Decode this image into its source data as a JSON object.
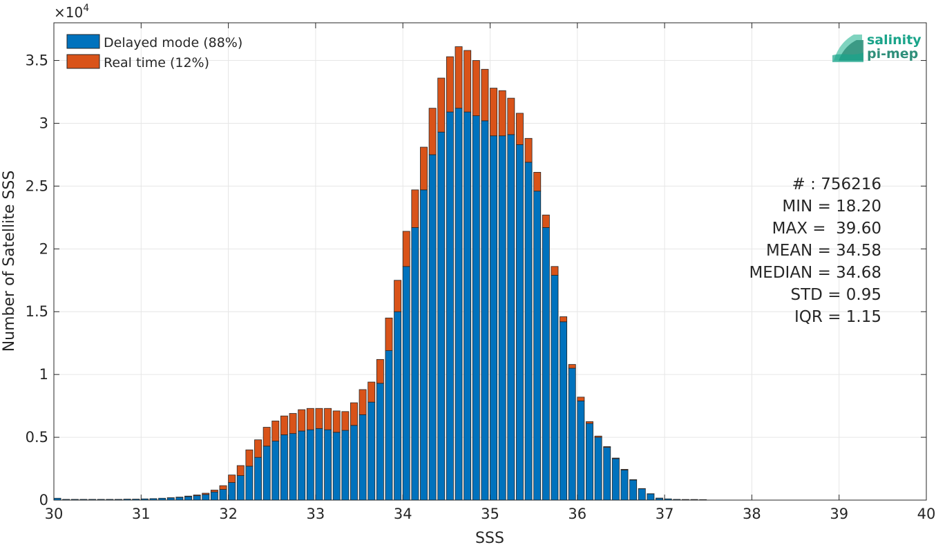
{
  "chart_data": {
    "type": "bar",
    "stacked": true,
    "xlabel": "SSS",
    "ylabel": "Number of Satellite SSS",
    "y_multiplier_label": "×10",
    "y_multiplier_exp": "4",
    "xlim": [
      30,
      40
    ],
    "ylim": [
      0,
      38000
    ],
    "xticks": [
      30,
      31,
      32,
      33,
      34,
      35,
      36,
      37,
      38,
      39,
      40
    ],
    "yticks": [
      0,
      5000,
      10000,
      15000,
      20000,
      25000,
      30000,
      35000
    ],
    "ytick_labels": [
      "0",
      "0.5",
      "1",
      "1.5",
      "2",
      "2.5",
      "3",
      "3.5"
    ],
    "grid": true,
    "legend_position": "top-left",
    "bin_width": 0.1,
    "x": [
      30.0,
      30.1,
      30.2,
      30.3,
      30.4,
      30.5,
      30.6,
      30.7,
      30.8,
      30.9,
      31.0,
      31.1,
      31.2,
      31.3,
      31.4,
      31.5,
      31.6,
      31.7,
      31.8,
      31.9,
      32.0,
      32.1,
      32.2,
      32.3,
      32.4,
      32.5,
      32.6,
      32.7,
      32.8,
      32.9,
      33.0,
      33.1,
      33.2,
      33.3,
      33.4,
      33.5,
      33.6,
      33.7,
      33.8,
      33.9,
      34.0,
      34.1,
      34.2,
      34.3,
      34.4,
      34.5,
      34.6,
      34.7,
      34.8,
      34.9,
      35.0,
      35.1,
      35.2,
      35.3,
      35.4,
      35.5,
      35.6,
      35.7,
      35.8,
      35.9,
      36.0,
      36.1,
      36.2,
      36.3,
      36.4,
      36.5,
      36.6,
      36.7,
      36.8,
      36.9,
      37.0,
      37.1,
      37.2,
      37.3,
      37.4
    ],
    "series": [
      {
        "name": "Delayed mode (88%)",
        "color": "#0072BD",
        "values": [
          150,
          60,
          60,
          60,
          60,
          60,
          60,
          60,
          80,
          80,
          100,
          120,
          150,
          180,
          220,
          280,
          350,
          450,
          650,
          850,
          1400,
          1950,
          2700,
          3400,
          4300,
          4700,
          5200,
          5300,
          5500,
          5600,
          5700,
          5600,
          5400,
          5550,
          5950,
          6800,
          7800,
          9300,
          11900,
          15000,
          18600,
          21700,
          24700,
          27500,
          29300,
          30900,
          31200,
          30900,
          30600,
          30200,
          29000,
          29000,
          29100,
          28300,
          26900,
          24600,
          21700,
          17900,
          14200,
          10500,
          7900,
          6100,
          5000,
          4200,
          3300,
          2400,
          1600,
          900,
          500,
          150,
          100,
          60,
          50,
          50,
          40
        ]
      },
      {
        "name": "Real time (12%)",
        "color": "#D95319",
        "values": [
          0,
          0,
          0,
          0,
          0,
          0,
          0,
          0,
          0,
          0,
          0,
          0,
          0,
          10,
          20,
          40,
          60,
          100,
          150,
          300,
          600,
          800,
          1300,
          1400,
          1500,
          1600,
          1500,
          1600,
          1700,
          1700,
          1600,
          1700,
          1700,
          1500,
          1800,
          2000,
          1600,
          1900,
          2600,
          2500,
          2800,
          3000,
          3400,
          3700,
          4300,
          4400,
          4900,
          4900,
          4400,
          4100,
          3800,
          3600,
          2900,
          2500,
          1900,
          1500,
          1000,
          700,
          400,
          300,
          300,
          150,
          100,
          60,
          50,
          50,
          30,
          20,
          10,
          10,
          0,
          0,
          0,
          0,
          0
        ]
      }
    ],
    "annotations": [
      "# : 756216",
      "MIN = 18.20",
      "MAX =  39.60",
      "MEAN = 34.58",
      "MEDIAN = 34.68",
      "STD = 0.95",
      "IQR = 1.15"
    ]
  },
  "logo": {
    "line1": "salinity",
    "line2": "pi-mep",
    "colors": [
      "#1aa48a",
      "#2f8f7a",
      "#7fd3bf"
    ]
  }
}
